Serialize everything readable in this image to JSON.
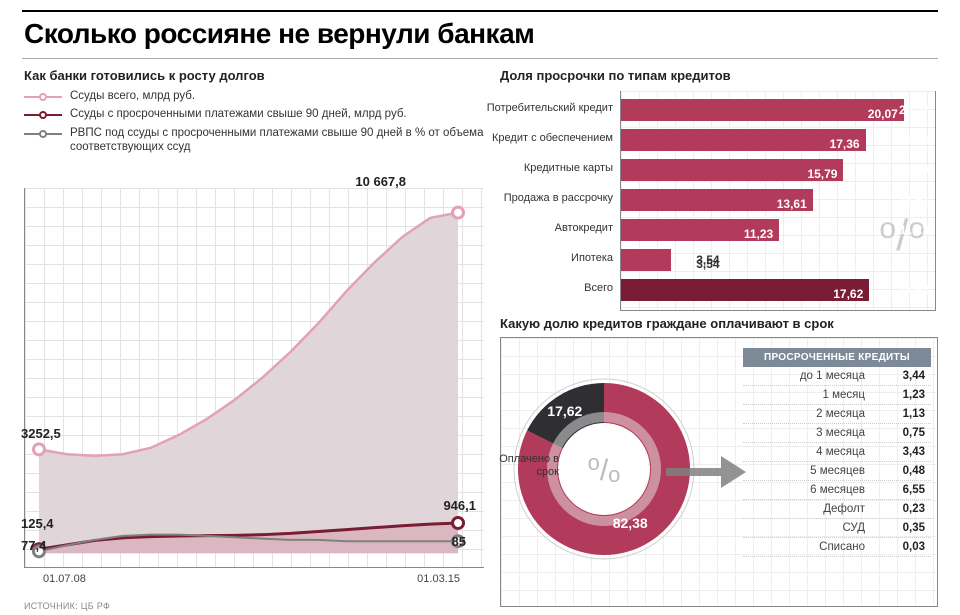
{
  "title": "Сколько россияне не вернули банкам",
  "source": "ИСТОЧНИК: ЦБ РФ",
  "colors": {
    "pink_fill": "#e0d6da",
    "pink_line": "#e3a0b6",
    "maroon": "#7a1c33",
    "maroon_fill": "#d7a3b0",
    "grey_line": "#808080",
    "bar": "#b23a5a",
    "bar_total": "#7a1c33",
    "donut_main": "#b23a5a",
    "donut_dark": "#2f2f33",
    "donut_inner_ring": "#e6e6e6",
    "table_head": "#7b8a96",
    "grid": "#e3e3e3",
    "text": "#222222"
  },
  "line_chart": {
    "subtitle": "Как банки готовились к росту долгов",
    "legend": [
      {
        "label": "Ссуды всего, млрд руб.",
        "color": "#e3a0b6"
      },
      {
        "label": "Ссуды с просроченными платежами свыше 90 дней, млрд руб.",
        "color": "#7a1c33"
      },
      {
        "label": "РВПС под ссуды с просроченными платежами свыше 90 дней в % от объема соответствующих ссуд",
        "color": "#808080"
      }
    ],
    "x_labels": {
      "start": "01.07.08",
      "end": "01.03.15"
    },
    "ylim": [
      0,
      11000
    ],
    "start_labels": {
      "total": "3252,5",
      "overdue": "125,4",
      "rvps": "77,4"
    },
    "end_labels": {
      "total": "10 667,8",
      "overdue": "946,1",
      "rvps": "85"
    },
    "series_total": [
      3252.5,
      3100,
      3050,
      3100,
      3300,
      3700,
      4200,
      4800,
      5500,
      6300,
      7200,
      8200,
      9100,
      9900,
      10500,
      10667.8
    ],
    "series_overdue": [
      125.4,
      260,
      400,
      480,
      520,
      540,
      550,
      560,
      580,
      620,
      680,
      740,
      800,
      860,
      910,
      946.1
    ],
    "series_rvps_pct": [
      77.4,
      82,
      86,
      89,
      90,
      90,
      89,
      88,
      87,
      86,
      86,
      85,
      85,
      85,
      85,
      85
    ],
    "rvps_ylim": [
      70,
      100
    ]
  },
  "bar_chart": {
    "subtitle": "Доля просрочки по типам кредитов",
    "xmax": 22,
    "bars": [
      {
        "label": "Потребительский кредит",
        "value": 20.07,
        "value_text": "20,07",
        "total": false,
        "label_inside": true
      },
      {
        "label": "Кредит с обеспечением",
        "value": 17.36,
        "value_text": "17,36",
        "total": false,
        "label_inside": true
      },
      {
        "label": "Кредитные карты",
        "value": 15.79,
        "value_text": "15,79",
        "total": false,
        "label_inside": false
      },
      {
        "label": "Продажа в рассрочку",
        "value": 13.61,
        "value_text": "13,61",
        "total": false,
        "label_inside": false
      },
      {
        "label": "Автокредит",
        "value": 11.23,
        "value_text": "11,23",
        "total": false,
        "label_inside": false
      },
      {
        "label": "Ипотека",
        "value": 3.54,
        "value_text": "3,54",
        "total": false,
        "label_inside": false
      },
      {
        "label": "Всего",
        "value": 17.62,
        "value_text": "17,62",
        "total": true,
        "label_inside": false
      }
    ],
    "percent_symbol": "%"
  },
  "donut_panel": {
    "subtitle": "Какую долю кредитов граждане оплачивают в срок",
    "paid": {
      "value": 82.38,
      "text": "82,38",
      "caption": "Оплачено в срок"
    },
    "overdue": {
      "value": 17.62,
      "text": "17,62"
    },
    "table_head": "ПРОСРОЧЕННЫЕ КРЕДИТЫ",
    "rows": [
      {
        "k": "до 1 месяца",
        "v": "3,44"
      },
      {
        "k": "1 месяц",
        "v": "1,23"
      },
      {
        "k": "2 месяца",
        "v": "1,13"
      },
      {
        "k": "3 месяца",
        "v": "0,75"
      },
      {
        "k": "4 месяца",
        "v": "3,43"
      },
      {
        "k": "5 месяцев",
        "v": "0,48"
      },
      {
        "k": "6 месяцев",
        "v": "6,55"
      },
      {
        "k": "Дефолт",
        "v": "0,23"
      },
      {
        "k": "СУД",
        "v": "0,35"
      },
      {
        "k": "Списано",
        "v": "0,03"
      }
    ]
  }
}
